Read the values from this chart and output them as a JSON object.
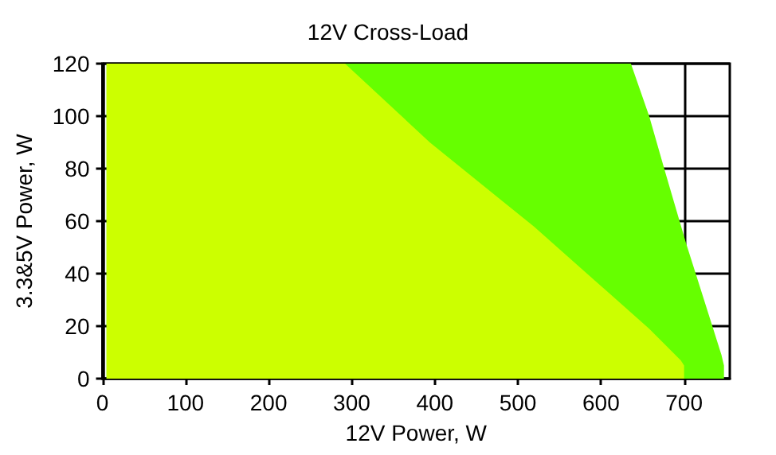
{
  "chart_data": {
    "type": "area",
    "title": "12V Cross-Load",
    "xlabel": "12V Power, W",
    "ylabel": "3.3&5V Power, W",
    "xlim": [
      0,
      755
    ],
    "xticks": [
      0,
      100,
      200,
      300,
      400,
      500,
      600,
      700
    ],
    "ylim": [
      0,
      120
    ],
    "yticks": [
      0,
      20,
      40,
      60,
      80,
      100,
      120
    ],
    "grid": true,
    "marker": "none",
    "series": [
      {
        "color": "#66ff00",
        "x": [
          5,
          636,
          658,
          677,
          702,
          721,
          745,
          748
        ],
        "values": [
          120,
          120,
          100,
          79,
          52,
          33,
          9,
          5
        ]
      },
      {
        "color": "#ccff00",
        "x": [
          5,
          292,
          394,
          519,
          594,
          658,
          696,
          700
        ],
        "values": [
          120,
          120,
          90,
          58,
          37,
          19,
          7,
          5
        ]
      }
    ]
  }
}
